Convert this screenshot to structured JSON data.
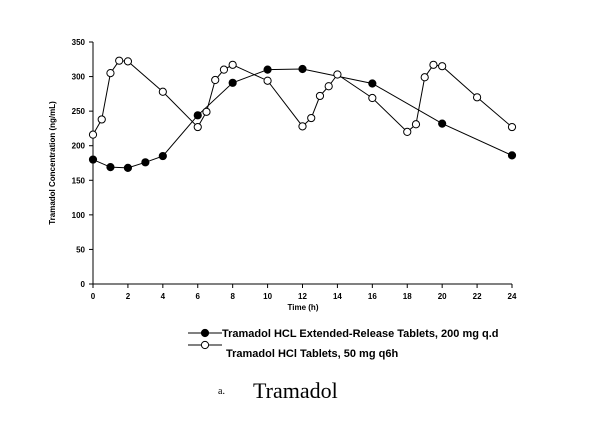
{
  "chart_data": {
    "type": "line",
    "xlabel": "Time (h)",
    "ylabel": "Tramadol Concentration (ng/mL)",
    "xlim": [
      0,
      24
    ],
    "ylim": [
      0,
      350
    ],
    "xticks": [
      0,
      2,
      4,
      6,
      8,
      10,
      12,
      14,
      16,
      18,
      20,
      22,
      24
    ],
    "yticks": [
      0,
      50,
      100,
      150,
      200,
      250,
      300,
      350
    ],
    "grid": false,
    "series": [
      {
        "name": "Tramadol HCL Extended-Release Tablets, 200 mg q.d",
        "marker": "filled-circle",
        "color": "#000000",
        "x": [
          0,
          1,
          2,
          3,
          4,
          6,
          8,
          10,
          12,
          16,
          20,
          24
        ],
        "y": [
          180,
          169,
          168,
          176,
          185,
          244,
          291,
          310,
          311,
          290,
          232,
          186
        ]
      },
      {
        "name": "Tramadol HCl Tablets, 50 mg q6h",
        "marker": "open-circle",
        "color": "#000000",
        "x": [
          0,
          0.5,
          1,
          1.5,
          2,
          4,
          6,
          6.5,
          7,
          7.5,
          8,
          10,
          12,
          12.5,
          13,
          13.5,
          14,
          16,
          18,
          18.5,
          19,
          19.5,
          20,
          22,
          24
        ],
        "y": [
          216,
          238,
          305,
          323,
          322,
          278,
          227,
          249,
          295,
          310,
          317,
          294,
          228,
          240,
          272,
          286,
          303,
          269,
          220,
          231,
          299,
          317,
          315,
          270,
          227
        ]
      }
    ]
  },
  "caption": {
    "letter": "a.",
    "title": "Tramadol"
  }
}
